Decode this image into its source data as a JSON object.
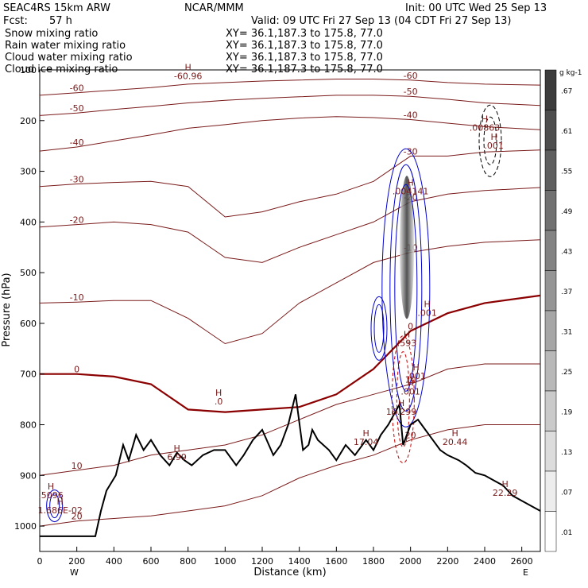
{
  "header": {
    "model": "SEAC4RS 15km ARW",
    "org": "NCAR/MMM",
    "init": "Init: 00 UTC Wed 25 Sep 13",
    "fcst_label": "Fcst:",
    "fcst_value": "57 h",
    "valid": "Valid: 09 UTC Fri 27 Sep 13 (04 CDT Fri 27 Sep 13)"
  },
  "legend": [
    {
      "label": "Snow mixing ratio",
      "xy": "XY=  36.1,187.3 to 175.8, 77.0",
      "color": "#000000"
    },
    {
      "label": "Rain water mixing ratio",
      "xy": "XY=  36.1,187.3 to 175.8, 77.0",
      "color": "#cc0000"
    },
    {
      "label": "Cloud water mixing ratio",
      "xy": "XY=  36.1,187.3 to 175.8, 77.0",
      "color": "#0000cc"
    },
    {
      "label": "Cloud ice mixing ratio",
      "xy": "XY=  36.1,187.3 to 175.8, 77.0",
      "color": "#000000"
    }
  ],
  "colors": {
    "temperature": "#7a1a1a",
    "freezing": "#8b0000",
    "terrain": "#000000",
    "cloud": "#0000cc",
    "rain": "#cc0000"
  },
  "chart_data": {
    "type": "area",
    "xlabel": "Distance (km)",
    "ylabel": "Pressure (hPa)",
    "xlim": [
      0,
      2700
    ],
    "ylim": [
      1050,
      100
    ],
    "xticks": [
      "0",
      "200",
      "400",
      "600",
      "800",
      "1000",
      "1200",
      "1400",
      "1600",
      "1800",
      "2000",
      "2200",
      "2400",
      "2600"
    ],
    "yticks": [
      "100",
      "200",
      "300",
      "400",
      "500",
      "600",
      "700",
      "800",
      "900",
      "1000"
    ],
    "end_labels": {
      "left": "W",
      "right": "E"
    },
    "colorbar": {
      "unit": "g kg-1",
      "labels": [
        ".67",
        ".61",
        ".55",
        ".49",
        ".43",
        ".37",
        ".31",
        ".25",
        ".19",
        ".13",
        ".07",
        ".01"
      ]
    },
    "terrain": {
      "x": [
        0,
        300,
        330,
        360,
        410,
        450,
        480,
        520,
        560,
        600,
        650,
        700,
        740,
        780,
        820,
        880,
        940,
        1000,
        1060,
        1100,
        1150,
        1200,
        1260,
        1300,
        1340,
        1380,
        1420,
        1450,
        1470,
        1500,
        1560,
        1600,
        1650,
        1700,
        1760,
        1800,
        1840,
        1880,
        1910,
        1940,
        1960,
        2000,
        2040,
        2080,
        2120,
        2160,
        2200,
        2260,
        2300,
        2350,
        2400,
        2450,
        2500,
        2550,
        2600,
        2650,
        2700
      ],
      "pressure": [
        1020,
        1020,
        970,
        930,
        900,
        840,
        870,
        820,
        850,
        830,
        860,
        880,
        855,
        870,
        880,
        860,
        850,
        850,
        880,
        860,
        830,
        810,
        860,
        840,
        800,
        740,
        850,
        840,
        810,
        830,
        850,
        870,
        840,
        860,
        830,
        850,
        820,
        800,
        780,
        760,
        840,
        800,
        790,
        810,
        830,
        850,
        860,
        870,
        880,
        895,
        900,
        910,
        920,
        940,
        950,
        960,
        970
      ]
    },
    "temperature_contours": [
      {
        "level": -60,
        "pressure": [
          150,
          145,
          140,
          135,
          128,
          125,
          122,
          120,
          118,
          118,
          120,
          125,
          128,
          130
        ]
      },
      {
        "level": -50,
        "pressure": [
          190,
          185,
          178,
          172,
          165,
          160,
          156,
          153,
          150,
          150,
          152,
          158,
          165,
          170
        ]
      },
      {
        "level": -40,
        "pressure": [
          260,
          252,
          240,
          228,
          215,
          208,
          200,
          195,
          192,
          194,
          198,
          205,
          212,
          218
        ]
      },
      {
        "level": -30,
        "pressure": [
          330,
          325,
          322,
          320,
          330,
          390,
          380,
          360,
          345,
          320,
          270,
          270,
          262,
          258
        ]
      },
      {
        "level": -20,
        "pressure": [
          410,
          405,
          400,
          405,
          420,
          470,
          480,
          450,
          425,
          400,
          360,
          345,
          338,
          332
        ]
      },
      {
        "level": -10,
        "pressure": [
          560,
          558,
          555,
          555,
          590,
          640,
          620,
          560,
          520,
          480,
          460,
          448,
          440,
          435
        ]
      },
      {
        "level": 0,
        "pressure": [
          700,
          700,
          705,
          720,
          770,
          775,
          770,
          765,
          740,
          690,
          615,
          580,
          560,
          545
        ]
      },
      {
        "level": 10,
        "pressure": [
          900,
          890,
          880,
          860,
          850,
          840,
          820,
          790,
          760,
          740,
          720,
          690,
          680,
          680
        ]
      },
      {
        "level": 20,
        "pressure": [
          1000,
          990,
          985,
          980,
          970,
          960,
          940,
          905,
          880,
          860,
          830,
          810,
          800,
          800
        ]
      }
    ],
    "contour_x": [
      0,
      200,
      400,
      600,
      800,
      1000,
      1200,
      1400,
      1600,
      1800,
      2000,
      2200,
      2400,
      2700
    ],
    "contour_labels": [
      "-60",
      "-50",
      "-40",
      "-30",
      "-20",
      "-10",
      "0",
      "10",
      "-60",
      "-50",
      "-40",
      "-30",
      "-20",
      "-10",
      "0",
      "10"
    ],
    "maxima": [
      {
        "label": "-60.96",
        "x": 800,
        "p": 118
      },
      {
        "label": ".00863",
        "x": 2400,
        "p": 220
      },
      {
        "label": ".001",
        "x": 2450,
        "p": 255
      },
      {
        "label": ".004141",
        "x": 2000,
        "p": 345
      },
      {
        "label": ".001",
        "x": 2090,
        "p": 585
      },
      {
        "label": ".593",
        "x": 1980,
        "p": 645
      },
      {
        "label": ".001",
        "x": 2030,
        "p": 710
      },
      {
        "label": ".001",
        "x": 2000,
        "p": 740
      },
      {
        "label": ".0",
        "x": 965,
        "p": 760
      },
      {
        "label": "16.299",
        "x": 1950,
        "p": 780
      },
      {
        "label": "17.04",
        "x": 1760,
        "p": 840
      },
      {
        "label": "20.44",
        "x": 2240,
        "p": 840
      },
      {
        "label": "6.99",
        "x": 740,
        "p": 870
      },
      {
        "label": "22.29",
        "x": 2510,
        "p": 940
      },
      {
        "label": ".5096",
        "x": 60,
        "p": 945
      },
      {
        "label": "1.686E-02",
        "x": 110,
        "p": 975
      }
    ]
  }
}
